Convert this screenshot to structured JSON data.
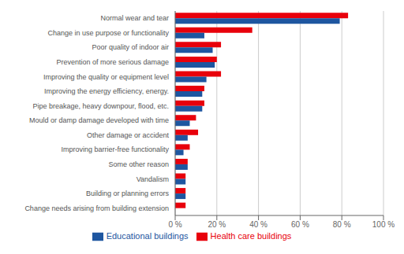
{
  "chart_data": {
    "type": "bar",
    "orientation": "horizontal",
    "categories": [
      "Change needs arising from building extension",
      "Building or planning errors",
      "Vandalism",
      "Some other reason",
      "Improving barrier-free functionality",
      "Other damage or accident",
      "Mould or damp damage developed with time",
      "Pipe breakage, heavy downpour, flood, etc.",
      "Improving the energy efficiency, energy.",
      "Improving the quality or equipment level",
      "Prevention of more serious damage",
      "Poor quality of indoor air",
      "Change in use purpose or functionality",
      "Normal wear and tear"
    ],
    "series": [
      {
        "name": "Health care buildings",
        "color": "#e8000b",
        "values": [
          5,
          5,
          5,
          6,
          7,
          11,
          10,
          14,
          14,
          22,
          20,
          22,
          37,
          83
        ]
      },
      {
        "name": "Educational buildings",
        "color": "#1e56a0",
        "values": [
          0,
          5,
          5,
          6,
          4,
          6,
          7,
          13,
          13,
          15,
          19,
          18,
          14,
          79
        ]
      }
    ],
    "xlim": [
      0,
      100
    ],
    "xticks": [
      {
        "value": 0,
        "label": "0 %"
      },
      {
        "value": 20,
        "label": "20 %"
      },
      {
        "value": 40,
        "label": "40 %"
      },
      {
        "value": 60,
        "label": "60 %"
      },
      {
        "value": 80,
        "label": "80 %"
      },
      {
        "value": 100,
        "label": "100 %"
      }
    ],
    "grid": true,
    "legend": "bottom"
  }
}
